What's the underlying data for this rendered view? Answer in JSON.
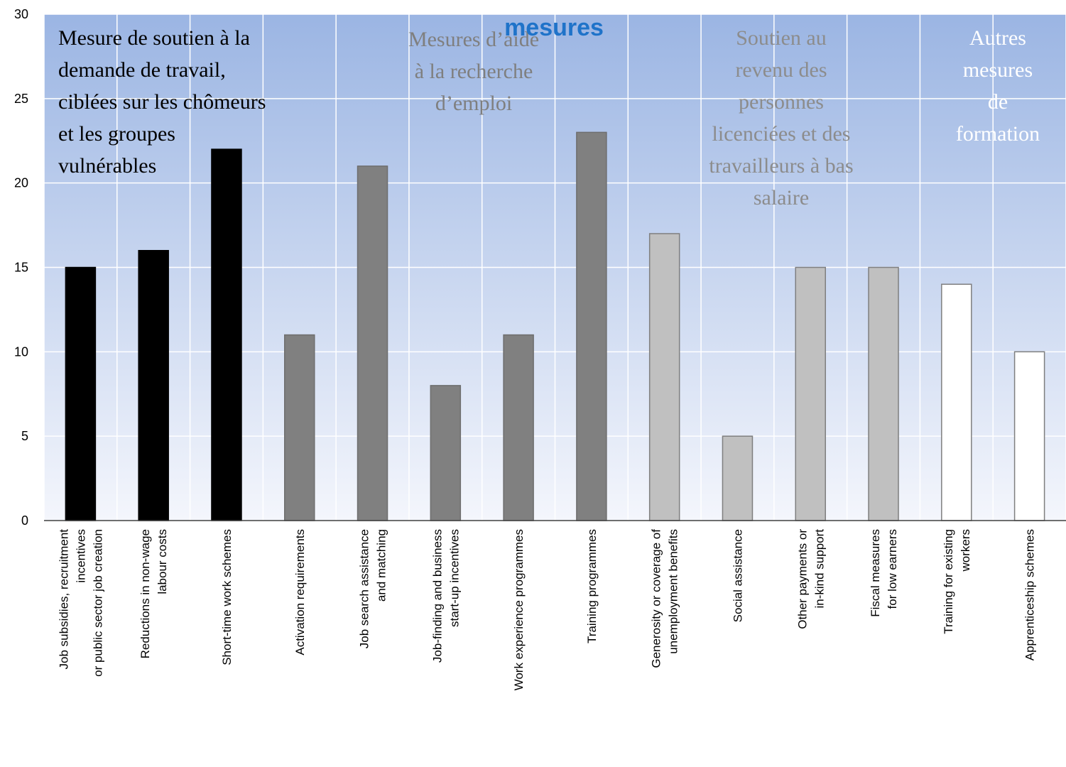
{
  "chart_data": {
    "type": "bar",
    "title_line2": "mesures",
    "ylim": [
      0,
      30
    ],
    "yticks": [
      0,
      5,
      10,
      15,
      20,
      25,
      30
    ],
    "grid": true,
    "categories": [
      [
        "Job subsidies, recruitment",
        "incentives",
        "or public sector job creation"
      ],
      [
        "Reductions in non-wage",
        "labour costs"
      ],
      [
        "Short-time work schemes"
      ],
      [
        "Activation requirements"
      ],
      [
        "Job search assistance",
        "and matching"
      ],
      [
        "Job-finding and business",
        "start-up incentives"
      ],
      [
        "Work experience programmes"
      ],
      [
        "Training programmes"
      ],
      [
        "Generosity or coverage of",
        "unemployment benefits"
      ],
      [
        "Social assistance"
      ],
      [
        "Other payments or",
        "in-kind support"
      ],
      [
        "Fiscal measures",
        "for low earners"
      ],
      [
        "Training for existing",
        "workers"
      ],
      [
        "Apprenticeship schemes"
      ]
    ],
    "values": [
      15,
      16,
      22,
      11,
      21,
      8,
      11,
      23,
      17,
      5,
      15,
      15,
      14,
      10
    ],
    "bar_colors": [
      "#000000",
      "#000000",
      "#000000",
      "#808080",
      "#808080",
      "#808080",
      "#808080",
      "#808080",
      "#c0c0c0",
      "#c0c0c0",
      "#c0c0c0",
      "#c0c0c0",
      "#ffffff",
      "#ffffff"
    ],
    "groups": [
      {
        "lines": [
          "Mesure de soutien à la",
          "demande de travail,",
          "ciblées sur les chômeurs",
          "et les groupes",
          "vulnérables"
        ],
        "color": "#000000"
      },
      {
        "lines": [
          "Mesures d’aide",
          "à la recherche",
          "d’emploi"
        ],
        "color": "#7f7f7f"
      },
      {
        "lines": [
          "Soutien au",
          "revenu des",
          "personnes",
          "licenciées et des",
          "travailleurs à bas",
          "salaire"
        ],
        "color": "#8c8c8c"
      },
      {
        "lines": [
          "Autres",
          "mesures",
          "de",
          "formation"
        ],
        "color": "#ffffff"
      }
    ]
  }
}
